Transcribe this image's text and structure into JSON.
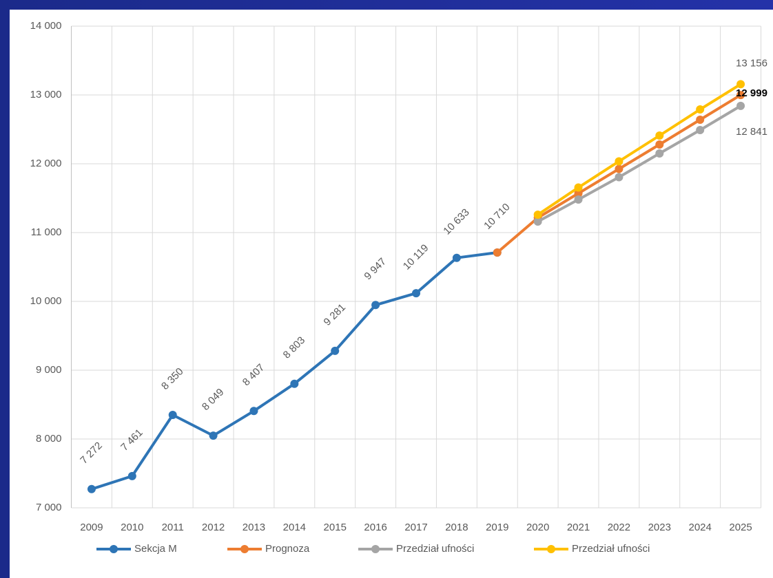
{
  "chart_data": {
    "type": "line",
    "categories": [
      "2009",
      "2010",
      "2011",
      "2012",
      "2013",
      "2014",
      "2015",
      "2016",
      "2017",
      "2018",
      "2019",
      "2020",
      "2021",
      "2022",
      "2023",
      "2024",
      "2025"
    ],
    "ylim": [
      7000,
      14000
    ],
    "yticks": [
      {
        "value": 7000,
        "label": "7 000"
      },
      {
        "value": 8000,
        "label": "8 000"
      },
      {
        "value": 9000,
        "label": "9 000"
      },
      {
        "value": 10000,
        "label": "10 000"
      },
      {
        "value": 11000,
        "label": "11 000"
      },
      {
        "value": 12000,
        "label": "12 000"
      },
      {
        "value": 13000,
        "label": "13 000"
      },
      {
        "value": 14000,
        "label": "14 000"
      }
    ],
    "grid": true,
    "legend": "bottom",
    "series": [
      {
        "name": "Sekcja M",
        "color": "#2e75b6",
        "values": [
          7272,
          7461,
          8350,
          8049,
          8407,
          8803,
          9281,
          9947,
          10119,
          10633,
          10710,
          null,
          null,
          null,
          null,
          null,
          null
        ],
        "value_labels": [
          "7 272",
          "7 461",
          "8 350",
          "8 049",
          "8 407",
          "8 803",
          "9 281",
          "9 947",
          "10 119",
          "10 633",
          "10 710",
          null,
          null,
          null,
          null,
          null,
          null
        ]
      },
      {
        "name": "Prognoza",
        "color": "#ed7d31",
        "values": [
          null,
          null,
          null,
          null,
          null,
          null,
          null,
          null,
          null,
          null,
          10710,
          11215,
          11570,
          11925,
          12280,
          12640,
          12999
        ],
        "value_labels": [
          null,
          null,
          null,
          null,
          null,
          null,
          null,
          null,
          null,
          null,
          null,
          null,
          null,
          null,
          null,
          null,
          "12 999"
        ]
      },
      {
        "name": "Przedział ufności",
        "color": "#a5a5a5",
        "values": [
          null,
          null,
          null,
          null,
          null,
          null,
          null,
          null,
          null,
          null,
          null,
          11160,
          11480,
          11805,
          12150,
          12490,
          12841
        ],
        "value_labels": [
          null,
          null,
          null,
          null,
          null,
          null,
          null,
          null,
          null,
          null,
          null,
          null,
          null,
          null,
          null,
          null,
          "12 841"
        ]
      },
      {
        "name": "Przedział ufności",
        "color": "#ffc000",
        "values": [
          null,
          null,
          null,
          null,
          null,
          null,
          null,
          null,
          null,
          null,
          null,
          11260,
          11655,
          12035,
          12410,
          12790,
          13156
        ],
        "value_labels": [
          null,
          null,
          null,
          null,
          null,
          null,
          null,
          null,
          null,
          null,
          null,
          null,
          null,
          null,
          null,
          null,
          "13 156"
        ]
      }
    ]
  }
}
